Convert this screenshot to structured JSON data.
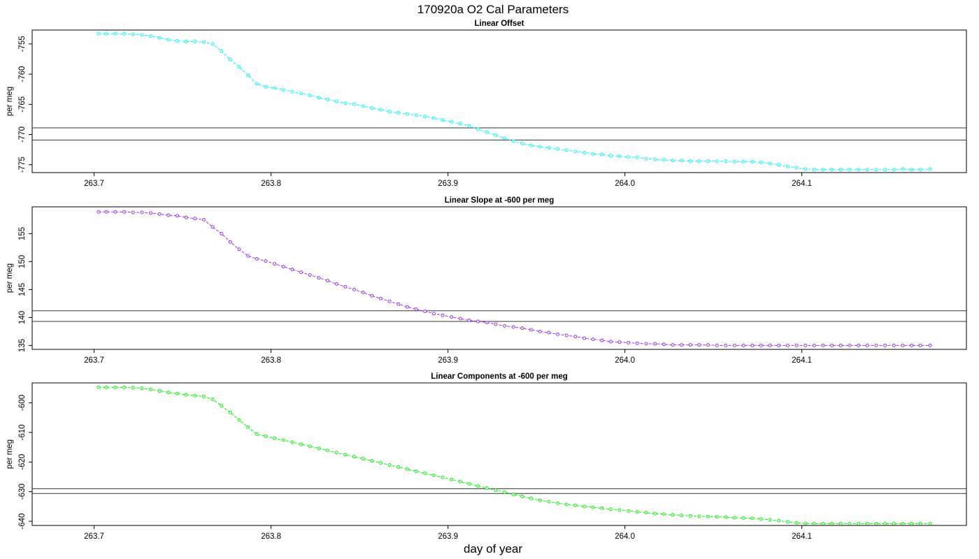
{
  "figure": {
    "title": "170920a   O2 Cal Parameters",
    "xlabel": "day of year"
  },
  "chart_data": [
    {
      "type": "line",
      "title": "Linear Offset",
      "xlabel": "",
      "ylabel": "per meg",
      "color": "#00ffff",
      "xlim": [
        263.665,
        264.193
      ],
      "ylim": [
        -776.3,
        -752.7
      ],
      "xticks": [
        263.7,
        263.8,
        263.9,
        264.0,
        264.1
      ],
      "yticks": [
        -755,
        -760,
        -765,
        -770,
        -775
      ],
      "reference_lines": [
        -768.9,
        -770.9
      ],
      "series": [
        {
          "x": [
            263.7025,
            263.707,
            263.712,
            263.717,
            263.722,
            263.727,
            263.732,
            263.737,
            263.742,
            263.747,
            263.752,
            263.757,
            263.762,
            263.767,
            263.772,
            263.777,
            263.782,
            263.787,
            263.792,
            263.797,
            263.802,
            263.807,
            263.812,
            263.817,
            263.822,
            263.827,
            263.832,
            263.837,
            263.842,
            263.847,
            263.852,
            263.857,
            263.862,
            263.867,
            263.872,
            263.877,
            263.882,
            263.887,
            263.892,
            263.897,
            263.902,
            263.907,
            263.912,
            263.917,
            263.922,
            263.927,
            263.932,
            263.937,
            263.942,
            263.947,
            263.952,
            263.957,
            263.962,
            263.967,
            263.972,
            263.977,
            263.982,
            263.987,
            263.992,
            263.997,
            264.002,
            264.007,
            264.012,
            264.017,
            264.022,
            264.027,
            264.032,
            264.037,
            264.042,
            264.047,
            264.052,
            264.057,
            264.062,
            264.067,
            264.072,
            264.077,
            264.082,
            264.087,
            264.092,
            264.097,
            264.102,
            264.107,
            264.112,
            264.117,
            264.122,
            264.127,
            264.132,
            264.137,
            264.142,
            264.147,
            264.152,
            264.157,
            264.162,
            264.167,
            264.1725
          ],
          "y": [
            -753.3,
            -753.3,
            -753.3,
            -753.3,
            -753.4,
            -753.5,
            -753.7,
            -754.0,
            -754.3,
            -754.5,
            -754.6,
            -754.6,
            -754.7,
            -755.0,
            -756.2,
            -757.6,
            -758.8,
            -760.2,
            -761.6,
            -762.1,
            -762.3,
            -762.6,
            -762.9,
            -763.2,
            -763.5,
            -763.9,
            -764.2,
            -764.5,
            -764.8,
            -765.0,
            -765.3,
            -765.6,
            -765.9,
            -766.2,
            -766.4,
            -766.6,
            -766.8,
            -767.0,
            -767.3,
            -767.6,
            -767.9,
            -768.2,
            -768.6,
            -769.1,
            -769.6,
            -770.1,
            -770.6,
            -771.1,
            -771.5,
            -771.8,
            -772.0,
            -772.2,
            -772.4,
            -772.6,
            -772.8,
            -773.0,
            -773.2,
            -773.3,
            -773.5,
            -773.6,
            -773.7,
            -773.8,
            -774.0,
            -774.1,
            -774.2,
            -774.3,
            -774.3,
            -774.4,
            -774.4,
            -774.4,
            -774.4,
            -774.4,
            -774.5,
            -774.5,
            -774.5,
            -774.6,
            -774.8,
            -775.0,
            -775.3,
            -775.5,
            -775.7,
            -775.8,
            -775.8,
            -775.8,
            -775.8,
            -775.8,
            -775.8,
            -775.8,
            -775.8,
            -775.8,
            -775.8,
            -775.7,
            -775.8,
            -775.8,
            -775.7
          ]
        }
      ]
    },
    {
      "type": "line",
      "title": "Linear Slope at -600 per meg",
      "xlabel": "",
      "ylabel": "per meg",
      "color": "#9b30ff",
      "xlim": [
        263.665,
        264.193
      ],
      "ylim": [
        134.3,
        159.8
      ],
      "xticks": [
        263.7,
        263.8,
        263.9,
        264.0,
        264.1
      ],
      "yticks": [
        135,
        140,
        145,
        150,
        155
      ],
      "reference_lines": [
        141.2,
        139.3
      ],
      "series": [
        {
          "x": [
            263.7025,
            263.707,
            263.712,
            263.717,
            263.722,
            263.727,
            263.732,
            263.737,
            263.742,
            263.747,
            263.752,
            263.757,
            263.762,
            263.767,
            263.772,
            263.777,
            263.782,
            263.787,
            263.792,
            263.797,
            263.802,
            263.807,
            263.812,
            263.817,
            263.822,
            263.827,
            263.832,
            263.837,
            263.842,
            263.847,
            263.852,
            263.857,
            263.862,
            263.867,
            263.872,
            263.877,
            263.882,
            263.887,
            263.892,
            263.897,
            263.902,
            263.907,
            263.912,
            263.917,
            263.922,
            263.927,
            263.932,
            263.937,
            263.942,
            263.947,
            263.952,
            263.957,
            263.962,
            263.967,
            263.972,
            263.977,
            263.982,
            263.987,
            263.992,
            263.997,
            264.002,
            264.007,
            264.012,
            264.017,
            264.022,
            264.027,
            264.032,
            264.037,
            264.042,
            264.047,
            264.052,
            264.057,
            264.062,
            264.067,
            264.072,
            264.077,
            264.082,
            264.087,
            264.092,
            264.097,
            264.102,
            264.107,
            264.112,
            264.117,
            264.122,
            264.127,
            264.132,
            264.137,
            264.142,
            264.147,
            264.152,
            264.157,
            264.162,
            264.167,
            264.1725
          ],
          "y": [
            158.9,
            158.9,
            158.9,
            158.9,
            158.8,
            158.8,
            158.7,
            158.5,
            158.3,
            158.2,
            157.9,
            157.7,
            157.5,
            156.2,
            155.0,
            153.5,
            152.2,
            151.0,
            150.5,
            150.1,
            149.6,
            149.1,
            148.6,
            148.1,
            147.6,
            147.1,
            146.6,
            146.0,
            145.5,
            145.0,
            144.5,
            143.9,
            143.4,
            142.9,
            142.4,
            141.9,
            141.5,
            141.1,
            140.7,
            140.4,
            140.1,
            139.8,
            139.5,
            139.3,
            139.1,
            138.8,
            138.5,
            138.3,
            138.1,
            137.8,
            137.5,
            137.3,
            137.0,
            136.8,
            136.6,
            136.3,
            136.1,
            135.9,
            135.7,
            135.6,
            135.5,
            135.4,
            135.3,
            135.3,
            135.2,
            135.1,
            135.1,
            135.1,
            135.1,
            135.1,
            135.0,
            135.0,
            135.0,
            135.0,
            135.0,
            135.0,
            135.0,
            135.0,
            135.0,
            135.0,
            135.0,
            135.0,
            135.0,
            135.0,
            135.0,
            135.0,
            135.0,
            135.0,
            135.0,
            135.0,
            135.0,
            135.0,
            135.0,
            135.0,
            135.0
          ]
        }
      ]
    },
    {
      "type": "line",
      "title": "Linear Components at -600 per meg",
      "xlabel": "",
      "ylabel": "per meg",
      "color": "#00ff00",
      "xlim": [
        263.665,
        264.193
      ],
      "ylim": [
        -641.4,
        -593.3
      ],
      "xticks": [
        263.7,
        263.8,
        263.9,
        264.0,
        264.1
      ],
      "yticks": [
        -600,
        -610,
        -620,
        -630,
        -640
      ],
      "reference_lines": [
        -629.0,
        -630.6
      ],
      "series": [
        {
          "x": [
            263.7025,
            263.707,
            263.712,
            263.717,
            263.722,
            263.727,
            263.732,
            263.737,
            263.742,
            263.747,
            263.752,
            263.757,
            263.762,
            263.767,
            263.772,
            263.777,
            263.782,
            263.787,
            263.792,
            263.797,
            263.802,
            263.807,
            263.812,
            263.817,
            263.822,
            263.827,
            263.832,
            263.837,
            263.842,
            263.847,
            263.852,
            263.857,
            263.862,
            263.867,
            263.872,
            263.877,
            263.882,
            263.887,
            263.892,
            263.897,
            263.902,
            263.907,
            263.912,
            263.917,
            263.922,
            263.927,
            263.932,
            263.937,
            263.942,
            263.947,
            263.952,
            263.957,
            263.962,
            263.967,
            263.972,
            263.977,
            263.982,
            263.987,
            263.992,
            263.997,
            264.002,
            264.007,
            264.012,
            264.017,
            264.022,
            264.027,
            264.032,
            264.037,
            264.042,
            264.047,
            264.052,
            264.057,
            264.062,
            264.067,
            264.072,
            264.077,
            264.082,
            264.087,
            264.092,
            264.097,
            264.102,
            264.107,
            264.112,
            264.117,
            264.122,
            264.127,
            264.132,
            264.137,
            264.142,
            264.147,
            264.152,
            264.157,
            264.162,
            264.167,
            264.1725
          ],
          "y": [
            -594.8,
            -594.8,
            -594.8,
            -594.8,
            -594.9,
            -595.1,
            -595.5,
            -596.0,
            -596.5,
            -596.9,
            -597.3,
            -597.6,
            -597.9,
            -598.8,
            -601.0,
            -603.3,
            -605.8,
            -608.2,
            -610.6,
            -611.3,
            -612.0,
            -612.6,
            -613.3,
            -614.0,
            -614.7,
            -615.4,
            -616.1,
            -616.8,
            -617.5,
            -618.2,
            -618.9,
            -619.6,
            -620.3,
            -621.0,
            -621.7,
            -622.4,
            -623.1,
            -623.8,
            -624.5,
            -625.2,
            -625.9,
            -626.6,
            -627.4,
            -628.1,
            -628.8,
            -629.5,
            -630.2,
            -630.9,
            -631.6,
            -632.3,
            -632.9,
            -633.4,
            -633.9,
            -634.3,
            -634.6,
            -635.0,
            -635.3,
            -635.6,
            -635.9,
            -636.2,
            -636.5,
            -636.8,
            -637.1,
            -637.4,
            -637.6,
            -637.8,
            -638.0,
            -638.2,
            -638.3,
            -638.4,
            -638.5,
            -638.6,
            -638.8,
            -638.9,
            -639.0,
            -639.2,
            -639.5,
            -639.8,
            -640.2,
            -640.5,
            -640.7,
            -640.8,
            -640.8,
            -640.8,
            -640.8,
            -640.8,
            -640.8,
            -640.8,
            -640.8,
            -640.8,
            -640.8,
            -640.8,
            -640.8,
            -640.8,
            -640.8
          ]
        }
      ]
    }
  ]
}
